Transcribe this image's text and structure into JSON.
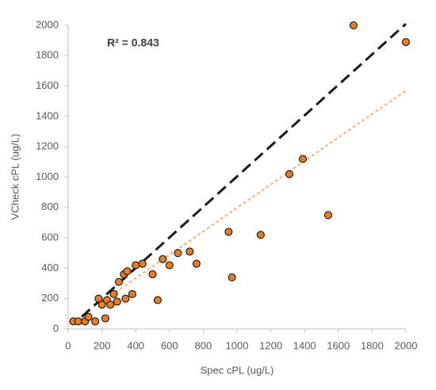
{
  "chart_data": {
    "type": "scatter",
    "annotation": "R² = 0.843",
    "xlabel": "Spec cPL (ug/L)",
    "ylabel": "VCheck cPL (ug/L)",
    "xlim": [
      0,
      2000
    ],
    "ylim": [
      0,
      2000
    ],
    "xticks": [
      0,
      200,
      400,
      600,
      800,
      1000,
      1200,
      1400,
      1600,
      1800,
      2000
    ],
    "yticks": [
      0,
      200,
      400,
      600,
      800,
      1000,
      1200,
      1400,
      1600,
      1800,
      2000
    ],
    "marker_color": "#e67e22",
    "x": [
      30,
      60,
      100,
      120,
      160,
      180,
      200,
      220,
      230,
      250,
      270,
      290,
      300,
      330,
      340,
      350,
      380,
      400,
      440,
      500,
      530,
      560,
      600,
      650,
      720,
      760,
      950,
      970,
      1140,
      1310,
      1390,
      1540,
      1690,
      2000
    ],
    "y": [
      50,
      50,
      50,
      80,
      50,
      200,
      160,
      70,
      190,
      160,
      230,
      180,
      310,
      360,
      200,
      380,
      230,
      420,
      430,
      360,
      190,
      460,
      420,
      500,
      510,
      430,
      640,
      340,
      620,
      1020,
      1120,
      750,
      2000,
      1890
    ],
    "lines": [
      {
        "color": "#1a1a1a",
        "dash": "14 7",
        "x": [
          80,
          2000
        ],
        "y": [
          80,
          2010
        ]
      },
      {
        "color": "#f4b183",
        "dash": "4 3",
        "x": [
          200,
          2000
        ],
        "y": [
          180,
          1570
        ]
      }
    ]
  }
}
